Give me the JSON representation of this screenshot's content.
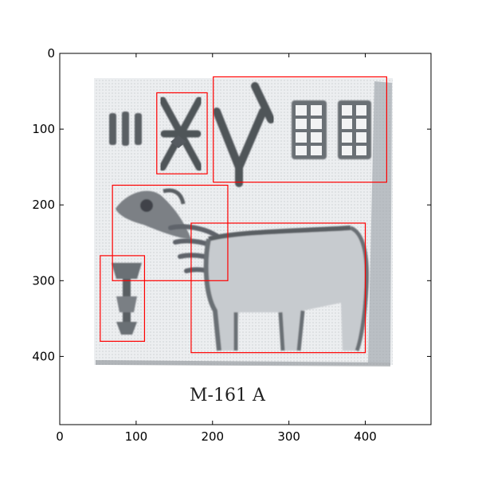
{
  "image": {
    "caption": "M-161 A",
    "description_icon": "seal-impression-icon"
  },
  "axes": {
    "x_ticks": [
      "0",
      "100",
      "200",
      "300",
      "400"
    ],
    "y_ticks": [
      "0",
      "100",
      "200",
      "300",
      "400"
    ],
    "xlim": [
      0,
      486
    ],
    "ylim": [
      490,
      0
    ]
  },
  "annotations": {
    "box_color": "#ff0000",
    "boxes": [
      {
        "name": "sign-strokes-box",
        "x0": 127,
        "y0": 52,
        "x1": 193,
        "y1": 159
      },
      {
        "name": "sign-jars-box",
        "x0": 201,
        "y0": 31,
        "x1": 428,
        "y1": 170
      },
      {
        "name": "animal-head-box",
        "x0": 69,
        "y0": 174,
        "x1": 220,
        "y1": 300
      },
      {
        "name": "animal-body-box",
        "x0": 172,
        "y0": 224,
        "x1": 400,
        "y1": 395
      },
      {
        "name": "standard-box",
        "x0": 53,
        "y0": 267,
        "x1": 111,
        "y1": 380
      }
    ]
  }
}
